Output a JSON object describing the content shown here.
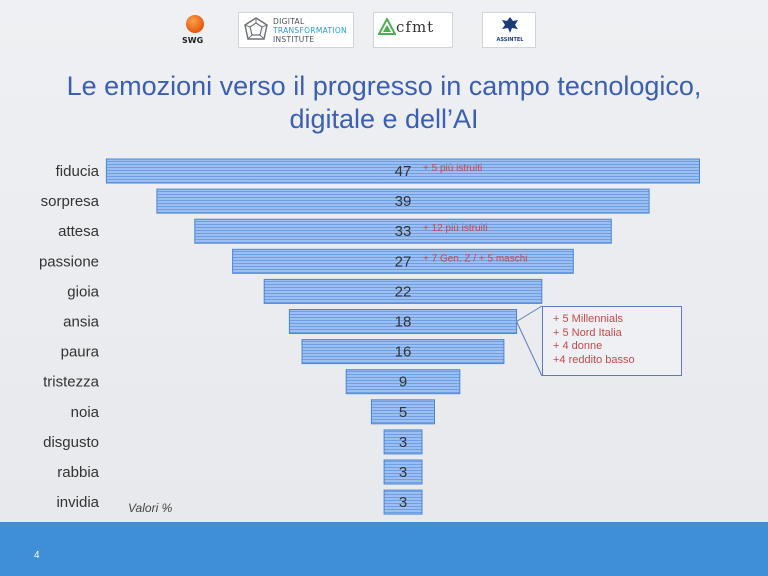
{
  "logos": {
    "swg": "SWG",
    "dti_line1": "DIGITAL",
    "dti_line2": "TRANSFORMATION",
    "dti_line3": "INSTITUTE",
    "cfmt": "cfmt",
    "assintel": "ASSINTEL"
  },
  "title_line1": "Le emozioni verso il progresso in campo tecnologico,",
  "title_line2": "digitale e dell’AI",
  "chart_data": {
    "type": "bar",
    "orientation": "horizontal-centered",
    "categories": [
      "fiducia",
      "sorpresa",
      "attesa",
      "passione",
      "gioia",
      "ansia",
      "paura",
      "tristezza",
      "noia",
      "disgusto",
      "rabbia",
      "invidia"
    ],
    "values": [
      47,
      39,
      33,
      27,
      22,
      18,
      16,
      9,
      5,
      3,
      3,
      3
    ],
    "notes": {
      "fiducia": "+ 5 più istruiti",
      "attesa": "+ 12 più istruiti",
      "passione": "+ 7 Gen. Z / + 5 maschi"
    },
    "callout": {
      "category": "ansia",
      "lines": [
        "+ 5 Millennials",
        "+ 5 Nord Italia",
        "+ 4 donne",
        "+4 reddito basso"
      ]
    },
    "unit_note": "Valori %",
    "bar_color": "#8fb5e8",
    "bar_border": "#4a86d6"
  },
  "footer": {
    "page_number": "4",
    "color": "#3f8fd6"
  }
}
